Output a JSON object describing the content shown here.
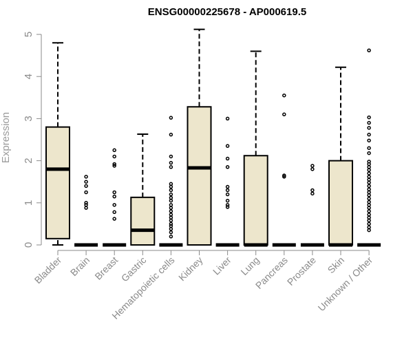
{
  "chart_data": {
    "type": "boxplot",
    "title": "ENSG00000225678 - AP000619.5",
    "xlabel": "",
    "ylabel": "Expression",
    "ylim": [
      0,
      5.2
    ],
    "yticks": [
      0,
      1,
      2,
      3,
      4,
      5
    ],
    "grid": false,
    "legend": "none",
    "colors": {
      "box_fill": "#ede6cc",
      "stroke": "#000000",
      "axis": "#8a8a8a"
    },
    "categories": [
      "Bladder",
      "Brain",
      "Breast",
      "Gastric",
      "Hematopoietic cells",
      "Kidney",
      "Liver",
      "Lung",
      "Pancreas",
      "Prostate",
      "Skin",
      "Unknown / Other"
    ],
    "boxes": [
      {
        "min": 0,
        "q1": 0.15,
        "median": 1.8,
        "q3": 2.8,
        "max": 4.8,
        "outliers": []
      },
      {
        "min": 0,
        "q1": 0,
        "median": 0,
        "q3": 0,
        "max": 0,
        "outliers": [
          0.88,
          0.95,
          1.0,
          1.25,
          1.4,
          1.5,
          1.62
        ]
      },
      {
        "min": 0,
        "q1": 0,
        "median": 0,
        "q3": 0,
        "max": 0,
        "outliers": [
          0.62,
          0.78,
          0.95,
          1.15,
          1.25,
          1.88,
          1.92,
          2.1,
          2.25
        ]
      },
      {
        "min": 0,
        "q1": 0,
        "median": 0.35,
        "q3": 1.13,
        "max": 2.63,
        "outliers": []
      },
      {
        "min": 0,
        "q1": 0,
        "median": 0,
        "q3": 0,
        "max": 0,
        "outliers": [
          0.2,
          0.3,
          0.38,
          0.45,
          0.5,
          0.58,
          0.65,
          0.72,
          0.8,
          0.88,
          0.95,
          1.05,
          1.12,
          1.2,
          1.3,
          1.38,
          1.45,
          1.85,
          1.95,
          2.1,
          2.62,
          3.02
        ]
      },
      {
        "min": 0,
        "q1": 0,
        "median": 1.83,
        "q3": 3.28,
        "max": 5.12,
        "outliers": []
      },
      {
        "min": 0,
        "q1": 0,
        "median": 0,
        "q3": 0,
        "max": 0,
        "outliers": [
          0.9,
          0.95,
          1.05,
          1.2,
          1.3,
          1.38,
          1.85,
          2.05,
          2.35,
          3.0
        ]
      },
      {
        "min": 0,
        "q1": 0,
        "median": 0,
        "q3": 2.12,
        "max": 4.6,
        "outliers": []
      },
      {
        "min": 0,
        "q1": 0,
        "median": 0,
        "q3": 0,
        "max": 0,
        "outliers": [
          1.62,
          1.65,
          3.1,
          3.55
        ]
      },
      {
        "min": 0,
        "q1": 0,
        "median": 0,
        "q3": 0,
        "max": 0,
        "outliers": [
          1.22,
          1.3,
          1.8,
          1.88
        ]
      },
      {
        "min": 0,
        "q1": 0,
        "median": 0,
        "q3": 2.0,
        "max": 4.22,
        "outliers": []
      },
      {
        "min": 0,
        "q1": 0,
        "median": 0,
        "q3": 0,
        "max": 0,
        "outliers": [
          0.35,
          0.42,
          0.5,
          0.58,
          0.65,
          0.72,
          0.8,
          0.88,
          0.95,
          1.02,
          1.1,
          1.18,
          1.25,
          1.32,
          1.4,
          1.48,
          1.55,
          1.62,
          1.7,
          1.78,
          1.85,
          1.92,
          1.98,
          2.18,
          2.3,
          2.48,
          2.62,
          2.78,
          2.9,
          3.03,
          4.62
        ]
      }
    ]
  }
}
